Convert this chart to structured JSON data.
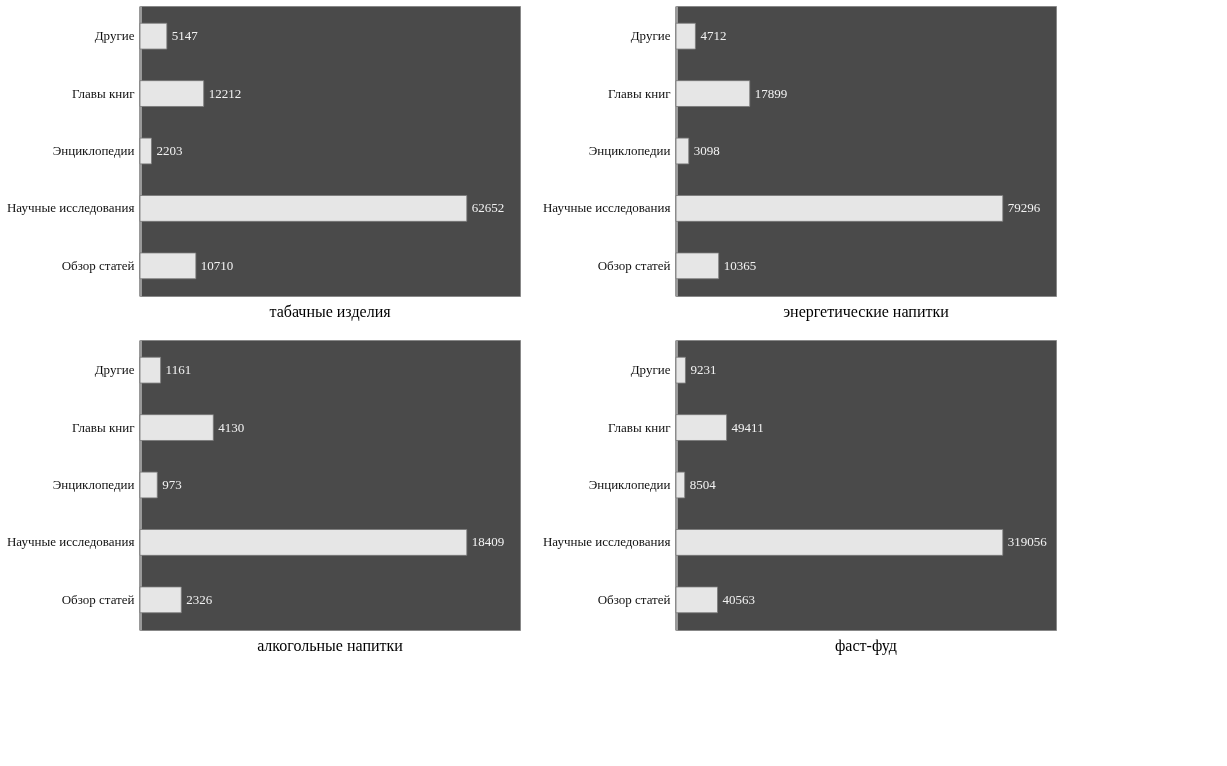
{
  "chart_data": [
    {
      "type": "bar",
      "orientation": "horizontal",
      "title": "табачные изделия",
      "categories": [
        "Другие",
        "Главы книг",
        "Энциклопедии",
        "Научные исследования",
        "Обзор статей"
      ],
      "values": [
        5147,
        12212,
        2203,
        62652,
        10710
      ],
      "color": "#e6e6e6",
      "data_labels": true,
      "tick_labels": "y",
      "grid": false
    },
    {
      "type": "bar",
      "orientation": "horizontal",
      "title": "энергетические напитки",
      "categories": [
        "Другие",
        "Главы книг",
        "Энциклопедии",
        "Научные исследования",
        "Обзор статей"
      ],
      "values": [
        4712,
        17899,
        3098,
        79296,
        10365
      ],
      "color": "#e6e6e6",
      "data_labels": true,
      "tick_labels": "y",
      "grid": false
    },
    {
      "type": "bar",
      "orientation": "horizontal",
      "title": "алкогольные напитки",
      "categories": [
        "Другие",
        "Главы книг",
        "Энциклопедии",
        "Научные исследования",
        "Обзор статей"
      ],
      "values": [
        1161,
        4130,
        973,
        18409,
        2326
      ],
      "color": "#e6e6e6",
      "data_labels": true,
      "tick_labels": "y",
      "grid": false
    },
    {
      "type": "bar",
      "orientation": "horizontal",
      "title": "фаст-фуд",
      "categories": [
        "Другие",
        "Главы книг",
        "Энциклопедии",
        "Научные исследования",
        "Обзор статей"
      ],
      "values": [
        9231,
        49411,
        8504,
        319056,
        40563
      ],
      "color": "#e6e6e6",
      "data_labels": true,
      "tick_labels": "y",
      "grid": false
    }
  ]
}
